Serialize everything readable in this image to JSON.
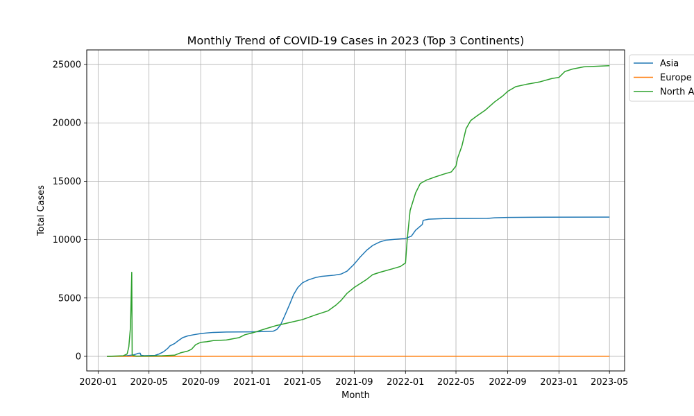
{
  "chart_data": {
    "type": "line",
    "title": "Monthly Trend of COVID-19 Cases in 2023 (Top 3 Continents)",
    "xlabel": "Month",
    "ylabel": "Total Cases",
    "x_ticks": [
      "2020-01",
      "2020-05",
      "2020-09",
      "2021-01",
      "2021-05",
      "2021-09",
      "2022-01",
      "2022-05",
      "2022-09",
      "2023-01",
      "2023-05"
    ],
    "y_ticks": [
      0,
      5000,
      10000,
      15000,
      20000,
      25000
    ],
    "xlim": [
      "2019-12-05",
      "2023-06-06"
    ],
    "ylim": [
      -1250,
      26250
    ],
    "grid": true,
    "legend_position": "top-right (outside)",
    "series": [
      {
        "name": "Asia",
        "color": "#1f77b4",
        "points": [
          [
            "2020-01-22",
            0
          ],
          [
            "2020-03-01",
            20
          ],
          [
            "2020-03-20",
            100
          ],
          [
            "2020-03-25",
            120
          ],
          [
            "2020-04-01",
            200
          ],
          [
            "2020-04-05",
            260
          ],
          [
            "2020-04-10",
            270
          ],
          [
            "2020-04-12",
            90
          ],
          [
            "2020-04-20",
            60
          ],
          [
            "2020-05-15",
            80
          ],
          [
            "2020-05-25",
            200
          ],
          [
            "2020-06-05",
            400
          ],
          [
            "2020-06-15",
            700
          ],
          [
            "2020-06-20",
            900
          ],
          [
            "2020-07-01",
            1100
          ],
          [
            "2020-07-10",
            1350
          ],
          [
            "2020-07-20",
            1600
          ],
          [
            "2020-08-01",
            1750
          ],
          [
            "2020-08-15",
            1850
          ],
          [
            "2020-09-01",
            1950
          ],
          [
            "2020-09-15",
            2000
          ],
          [
            "2020-10-01",
            2050
          ],
          [
            "2020-11-01",
            2080
          ],
          [
            "2021-01-01",
            2100
          ],
          [
            "2021-02-01",
            2130
          ],
          [
            "2021-02-20",
            2150
          ],
          [
            "2021-03-01",
            2300
          ],
          [
            "2021-03-10",
            2700
          ],
          [
            "2021-03-20",
            3500
          ],
          [
            "2021-04-01",
            4500
          ],
          [
            "2021-04-10",
            5300
          ],
          [
            "2021-04-20",
            5900
          ],
          [
            "2021-05-01",
            6300
          ],
          [
            "2021-05-15",
            6550
          ],
          [
            "2021-06-01",
            6750
          ],
          [
            "2021-06-15",
            6850
          ],
          [
            "2021-07-15",
            6950
          ],
          [
            "2021-08-01",
            7050
          ],
          [
            "2021-08-15",
            7300
          ],
          [
            "2021-09-01",
            7900
          ],
          [
            "2021-09-15",
            8500
          ],
          [
            "2021-10-01",
            9100
          ],
          [
            "2021-10-15",
            9500
          ],
          [
            "2021-11-01",
            9800
          ],
          [
            "2021-11-15",
            9950
          ],
          [
            "2021-12-15",
            10050
          ],
          [
            "2022-01-01",
            10100
          ],
          [
            "2022-01-15",
            10300
          ],
          [
            "2022-01-25",
            10800
          ],
          [
            "2022-02-10",
            11300
          ],
          [
            "2022-02-12",
            11650
          ],
          [
            "2022-02-25",
            11750
          ],
          [
            "2022-04-01",
            11800
          ],
          [
            "2022-07-15",
            11820
          ],
          [
            "2022-08-01",
            11870
          ],
          [
            "2022-09-01",
            11900
          ],
          [
            "2022-12-01",
            11920
          ],
          [
            "2023-05-01",
            11930
          ]
        ]
      },
      {
        "name": "Europe",
        "color": "#ff7f0e",
        "points": [
          [
            "2020-01-22",
            0
          ],
          [
            "2020-09-01",
            0
          ],
          [
            "2020-10-01",
            5
          ],
          [
            "2023-05-01",
            5
          ]
        ]
      },
      {
        "name": "North America",
        "color": "#2ca02c",
        "points": [
          [
            "2020-01-22",
            0
          ],
          [
            "2020-03-01",
            50
          ],
          [
            "2020-03-10",
            200
          ],
          [
            "2020-03-14",
            800
          ],
          [
            "2020-03-18",
            2500
          ],
          [
            "2020-03-21",
            7200
          ],
          [
            "2020-03-22",
            100
          ],
          [
            "2020-04-01",
            20
          ],
          [
            "2020-05-01",
            30
          ],
          [
            "2020-06-01",
            50
          ],
          [
            "2020-07-01",
            100
          ],
          [
            "2020-07-15",
            300
          ],
          [
            "2020-08-01",
            450
          ],
          [
            "2020-08-10",
            600
          ],
          [
            "2020-08-20",
            1000
          ],
          [
            "2020-09-01",
            1200
          ],
          [
            "2020-09-15",
            1250
          ],
          [
            "2020-10-01",
            1350
          ],
          [
            "2020-11-01",
            1400
          ],
          [
            "2020-12-01",
            1600
          ],
          [
            "2020-12-15",
            1850
          ],
          [
            "2021-01-01",
            2000
          ],
          [
            "2021-01-15",
            2150
          ],
          [
            "2021-02-01",
            2350
          ],
          [
            "2021-03-01",
            2650
          ],
          [
            "2021-04-01",
            2900
          ],
          [
            "2021-05-01",
            3150
          ],
          [
            "2021-06-01",
            3550
          ],
          [
            "2021-07-01",
            3900
          ],
          [
            "2021-07-20",
            4400
          ],
          [
            "2021-08-01",
            4800
          ],
          [
            "2021-08-15",
            5400
          ],
          [
            "2021-09-01",
            5900
          ],
          [
            "2021-10-01",
            6600
          ],
          [
            "2021-10-15",
            7000
          ],
          [
            "2021-11-01",
            7200
          ],
          [
            "2021-12-01",
            7500
          ],
          [
            "2021-12-20",
            7700
          ],
          [
            "2022-01-01",
            8000
          ],
          [
            "2022-01-05",
            10000
          ],
          [
            "2022-01-12",
            12500
          ],
          [
            "2022-01-25",
            14000
          ],
          [
            "2022-02-05",
            14800
          ],
          [
            "2022-02-20",
            15100
          ],
          [
            "2022-03-15",
            15400
          ],
          [
            "2022-04-01",
            15600
          ],
          [
            "2022-04-20",
            15800
          ],
          [
            "2022-05-01",
            16300
          ],
          [
            "2022-05-05",
            17000
          ],
          [
            "2022-05-15",
            18000
          ],
          [
            "2022-05-25",
            19500
          ],
          [
            "2022-06-05",
            20200
          ],
          [
            "2022-06-20",
            20600
          ],
          [
            "2022-07-10",
            21100
          ],
          [
            "2022-08-01",
            21800
          ],
          [
            "2022-08-20",
            22300
          ],
          [
            "2022-09-01",
            22700
          ],
          [
            "2022-09-20",
            23100
          ],
          [
            "2022-10-15",
            23300
          ],
          [
            "2022-11-15",
            23500
          ],
          [
            "2022-12-15",
            23800
          ],
          [
            "2023-01-01",
            23900
          ],
          [
            "2023-01-15",
            24400
          ],
          [
            "2023-02-01",
            24600
          ],
          [
            "2023-03-01",
            24800
          ],
          [
            "2023-05-01",
            24900
          ]
        ]
      }
    ]
  }
}
